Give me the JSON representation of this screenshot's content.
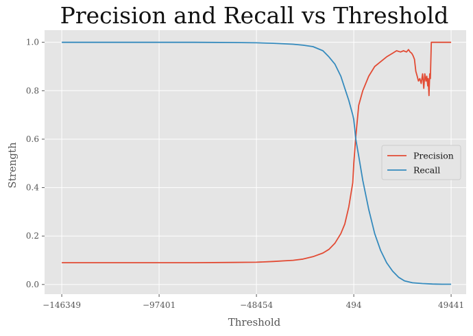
{
  "chart_data": {
    "type": "line",
    "title": "Precision and Recall vs Threshold",
    "xlabel": "Threshold",
    "ylabel": "Strength",
    "xlim": [
      -155000,
      57000
    ],
    "ylim": [
      -0.04,
      1.05
    ],
    "xticks": [
      -146349,
      -97401,
      -48454,
      494,
      49441
    ],
    "xtick_labels": [
      "−146349",
      "−97401",
      "−48454",
      "494",
      "49441"
    ],
    "yticks": [
      0.0,
      0.2,
      0.4,
      0.6,
      0.8,
      1.0
    ],
    "ytick_labels": [
      "0.0",
      "0.2",
      "0.4",
      "0.6",
      "0.8",
      "1.0"
    ],
    "grid": true,
    "legend_position": "center-right",
    "series": [
      {
        "name": "Precision",
        "color": "#e24a33",
        "x": [
          -146349,
          -120000,
          -100000,
          -80000,
          -60000,
          -48454,
          -40000,
          -30000,
          -25000,
          -20000,
          -15000,
          -12000,
          -9000,
          -6000,
          -4000,
          -2000,
          0,
          494,
          1500,
          3000,
          5000,
          8000,
          11000,
          14000,
          17000,
          20000,
          22000,
          24000,
          25500,
          27000,
          28000,
          28800,
          29600,
          30300,
          31000,
          31700,
          32400,
          33000,
          33700,
          34400,
          35100,
          35700,
          36200,
          36800,
          37200,
          37700,
          37900,
          38300,
          38700,
          39000,
          39500,
          49441
        ],
        "y": [
          0.09,
          0.09,
          0.09,
          0.09,
          0.091,
          0.092,
          0.095,
          0.1,
          0.105,
          0.115,
          0.13,
          0.145,
          0.17,
          0.21,
          0.25,
          0.32,
          0.42,
          0.5,
          0.61,
          0.74,
          0.8,
          0.86,
          0.9,
          0.92,
          0.94,
          0.955,
          0.965,
          0.96,
          0.965,
          0.96,
          0.97,
          0.96,
          0.955,
          0.945,
          0.93,
          0.88,
          0.86,
          0.84,
          0.85,
          0.83,
          0.87,
          0.81,
          0.87,
          0.84,
          0.86,
          0.82,
          0.85,
          0.78,
          0.87,
          0.85,
          1.0,
          1.0
        ]
      },
      {
        "name": "Recall",
        "color": "#348abd",
        "x": [
          -146349,
          -120000,
          -100000,
          -80000,
          -60000,
          -48454,
          -40000,
          -30000,
          -25000,
          -20000,
          -15000,
          -12000,
          -9000,
          -6000,
          -4000,
          -2000,
          0,
          494,
          1500,
          3000,
          5000,
          8000,
          11000,
          14000,
          17000,
          20000,
          23000,
          26000,
          30000,
          35000,
          40000,
          45000,
          49441
        ],
        "y": [
          1.0,
          1.0,
          1.0,
          1.0,
          0.999,
          0.998,
          0.996,
          0.992,
          0.988,
          0.982,
          0.965,
          0.94,
          0.91,
          0.86,
          0.81,
          0.76,
          0.7,
          0.68,
          0.6,
          0.53,
          0.43,
          0.31,
          0.21,
          0.14,
          0.09,
          0.055,
          0.03,
          0.015,
          0.007,
          0.004,
          0.002,
          0.001,
          0.001
        ]
      }
    ]
  }
}
